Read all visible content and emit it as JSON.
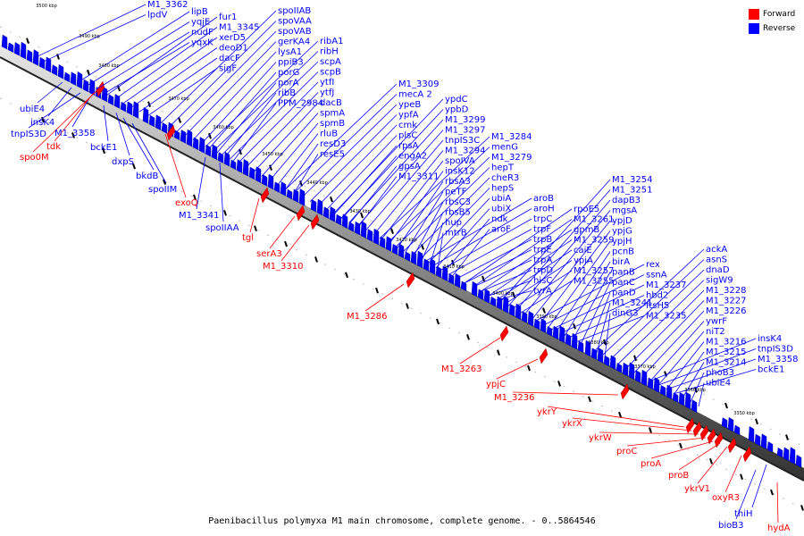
{
  "legend": {
    "forward_label": "Forward",
    "reverse_label": "Reverse",
    "forward_color": "#ff0000",
    "reverse_color": "#0000ff"
  },
  "caption": "Paenibacillus polymyxa M1 main chromosome, complete genome. - 0..5864546",
  "scale_labels": [
    "3500 kbp",
    "3490 kbp",
    "3480 kbp",
    "3470 kbp",
    "3460 kbp",
    "3450 kbp",
    "3440 kbp",
    "3430 kbp",
    "3420 kbp",
    "3410 kbp",
    "3400 kbp",
    "3390 kbp",
    "3380 kbp",
    "3370 kbp",
    "3360 kbp",
    "3350 kbp"
  ],
  "reverse_labels": [
    "M1_3362",
    "lpdV",
    "lipB",
    "yqjE",
    "nudF",
    "yqxK",
    "fur1",
    "M1_3345",
    "xerD5",
    "deoD1",
    "dacF",
    "sigF",
    "spoIIAB",
    "spoVAA",
    "spoVAB",
    "gerKA4",
    "lysA1",
    "ppiB3",
    "porG",
    "porA",
    "ribB",
    "PPM_2984",
    "ribA1",
    "ribH",
    "scpA",
    "scpB",
    "ytfI",
    "ytfJ",
    "dacB",
    "spmA",
    "spmB",
    "rluB",
    "resD3",
    "resE5",
    "M1_3309",
    "mecA 2",
    "ypeB",
    "ypfA",
    "cmk",
    "plsC",
    "rpsA",
    "engA2",
    "gpsA",
    "M1_3311",
    "ypdC",
    "ypbD",
    "M1_3299",
    "M1_3297",
    "tnpIS3C",
    "M1_3294",
    "spoIVA",
    "insK12",
    "rbsA3",
    "peTF",
    "rbsC3",
    "rbsB5",
    "hup",
    "mtrB",
    "M1_3284",
    "menG",
    "M1_3279",
    "hepT",
    "cheR3",
    "hepS",
    "ubiA",
    "ubiX",
    "ndk",
    "aroF",
    "aroB",
    "aroH",
    "trpC",
    "trpF",
    "trpB",
    "trpE",
    "trpA",
    "trpD",
    "hisC",
    "tyrA",
    "rpoE5",
    "M1_3261",
    "gpmB",
    "M1_3259",
    "caiE",
    "ypjA",
    "M1_3257",
    "M1_3255",
    "M1_3254",
    "M1_3251",
    "dapB3",
    "mgsA",
    "ypjD",
    "ypjG",
    "ypjH",
    "pcnB",
    "birA",
    "panB",
    "panC",
    "panD",
    "M1_3241",
    "dinG3",
    "rex",
    "ssnA",
    "M1_3237",
    "hbd2",
    "ftsH5",
    "M1_3235",
    "ackA",
    "asnS",
    "dnaD",
    "sigW9",
    "M1_3228",
    "M1_3227",
    "M1_3226",
    "ywrF",
    "niT2",
    "M1_3216",
    "M1_3215",
    "M1_3214",
    "phoB3",
    "ubiE4",
    "insK4",
    "tnpIS3D",
    "M1_3358",
    "bckE1",
    "dxpS",
    "bkdB",
    "spoIIM",
    "M1_3341",
    "spoIIAA",
    "thiH",
    "bioB3"
  ],
  "forward_labels": [
    "tdk",
    "spo0M",
    "exoQ",
    "tgl",
    "serA3",
    "M1_3310",
    "M1_3286",
    "M1_3263",
    "ypjC",
    "M1_3236",
    "ykrY",
    "ykrX",
    "ykrW",
    "proC",
    "proA",
    "proB",
    "ykrV1",
    "oxyR3",
    "hydA"
  ]
}
